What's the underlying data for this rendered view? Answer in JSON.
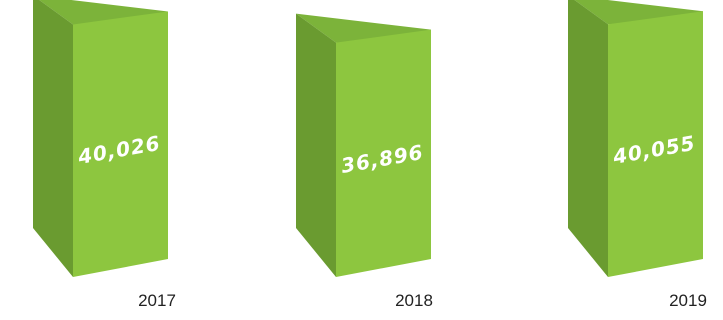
{
  "chart_data": {
    "type": "bar",
    "categories": [
      "2017",
      "2018",
      "2019"
    ],
    "values": [
      40026,
      36896,
      40055
    ],
    "value_labels": [
      "40,026",
      "36,896",
      "40,055"
    ],
    "title": "",
    "xlabel": "",
    "ylabel": "",
    "grid": false,
    "legend": "none",
    "style": "3d-prism"
  },
  "colors": {
    "top": "#7cb33a",
    "front": "#8dc63f",
    "side": "#6a9b30",
    "label_text": "#ffffff",
    "year_text": "#222222"
  }
}
